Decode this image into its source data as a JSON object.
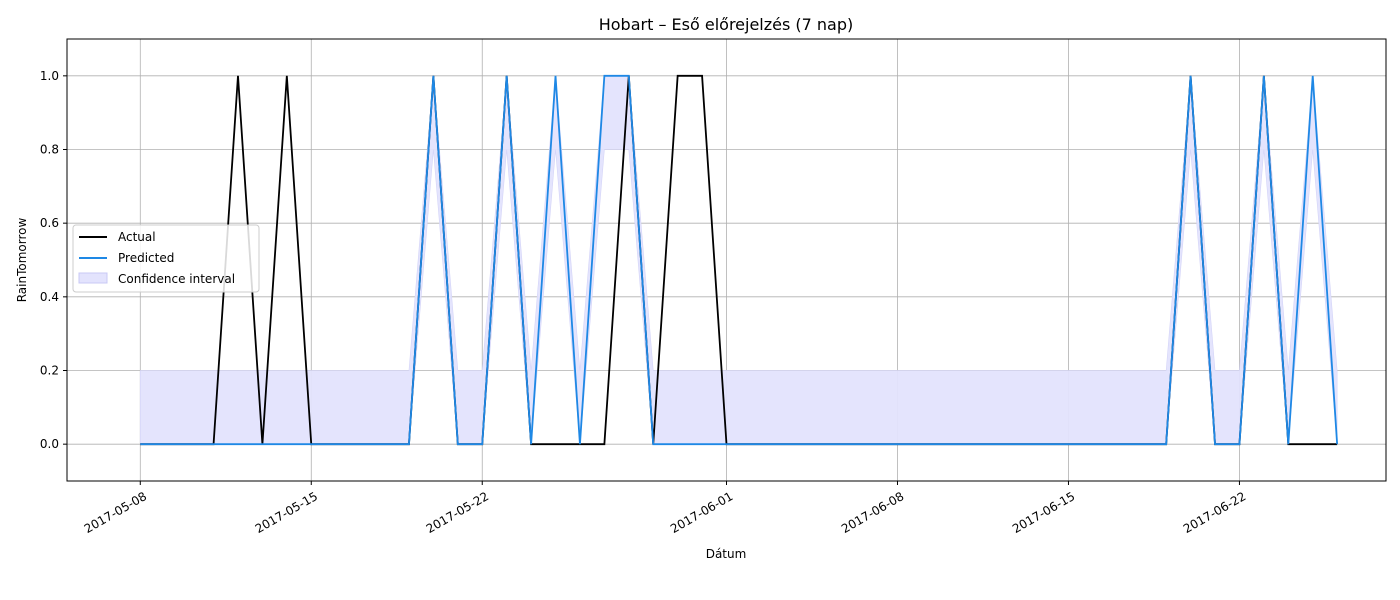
{
  "chart_data": {
    "type": "line",
    "title": "Hobart – Eső előrejelzés (7 nap)",
    "xlabel": "Dátum",
    "ylabel": "RainTomorrow",
    "x_start": "2017-05-08",
    "x": [
      "2017-05-08",
      "2017-05-09",
      "2017-05-10",
      "2017-05-11",
      "2017-05-12",
      "2017-05-13",
      "2017-05-14",
      "2017-05-15",
      "2017-05-16",
      "2017-05-17",
      "2017-05-18",
      "2017-05-19",
      "2017-05-20",
      "2017-05-21",
      "2017-05-22",
      "2017-05-23",
      "2017-05-24",
      "2017-05-25",
      "2017-05-26",
      "2017-05-27",
      "2017-05-28",
      "2017-05-29",
      "2017-05-30",
      "2017-05-31",
      "2017-06-01",
      "2017-06-02",
      "2017-06-03",
      "2017-06-04",
      "2017-06-05",
      "2017-06-06",
      "2017-06-07",
      "2017-06-08",
      "2017-06-09",
      "2017-06-10",
      "2017-06-11",
      "2017-06-12",
      "2017-06-13",
      "2017-06-14",
      "2017-06-15",
      "2017-06-16",
      "2017-06-17",
      "2017-06-18",
      "2017-06-19",
      "2017-06-20",
      "2017-06-21",
      "2017-06-22",
      "2017-06-23",
      "2017-06-24",
      "2017-06-25",
      "2017-06-26"
    ],
    "series": [
      {
        "name": "Actual",
        "color": "#000000",
        "values": [
          0,
          0,
          0,
          0,
          1,
          0,
          1,
          0,
          0,
          0,
          0,
          0,
          1,
          0,
          0,
          1,
          0,
          0,
          0,
          0,
          1,
          0,
          1,
          1,
          0,
          0,
          0,
          0,
          0,
          0,
          0,
          0,
          0,
          0,
          0,
          0,
          0,
          0,
          0,
          0,
          0,
          0,
          0,
          1,
          0,
          0,
          1,
          0,
          0,
          0
        ]
      },
      {
        "name": "Predicted",
        "color": "#1e88e5",
        "values": [
          0,
          0,
          0,
          0,
          0,
          0,
          0,
          0,
          0,
          0,
          0,
          0,
          1,
          0,
          0,
          1,
          0,
          1,
          0,
          1,
          1,
          0,
          0,
          0,
          0,
          0,
          0,
          0,
          0,
          0,
          0,
          0,
          0,
          0,
          0,
          0,
          0,
          0,
          0,
          0,
          0,
          0,
          0,
          1,
          0,
          0,
          1,
          0,
          1,
          0
        ]
      }
    ],
    "confidence_interval": {
      "name": "Confidence interval",
      "color": "#e3e3fd",
      "lower": [
        0,
        0,
        0,
        0,
        0,
        0,
        0,
        0,
        0,
        0,
        0,
        0,
        0.8,
        0,
        0,
        0.8,
        0,
        0.8,
        0,
        0.8,
        0.8,
        0,
        0,
        0,
        0,
        0,
        0,
        0,
        0,
        0,
        0,
        0,
        0,
        0,
        0,
        0,
        0,
        0,
        0,
        0,
        0,
        0,
        0,
        0.8,
        0,
        0,
        0.8,
        0,
        0.8,
        0
      ],
      "upper": [
        0.2,
        0.2,
        0.2,
        0.2,
        0.2,
        0.2,
        0.2,
        0.2,
        0.2,
        0.2,
        0.2,
        0.2,
        1,
        0.2,
        0.2,
        1,
        0.2,
        1,
        0.2,
        1,
        1,
        0.2,
        0.2,
        0.2,
        0.2,
        0.2,
        0.2,
        0.2,
        0.2,
        0.2,
        0.2,
        0.2,
        0.2,
        0.2,
        0.2,
        0.2,
        0.2,
        0.2,
        0.2,
        0.2,
        0.2,
        0.2,
        0.2,
        1,
        0.2,
        0.2,
        1,
        0.2,
        1,
        0.2
      ]
    },
    "xticks": [
      "2017-05-08",
      "2017-05-15",
      "2017-05-22",
      "2017-06-01",
      "2017-06-08",
      "2017-06-15",
      "2017-06-22"
    ],
    "yticks": [
      "0.0",
      "0.2",
      "0.4",
      "0.6",
      "0.8",
      "1.0"
    ],
    "xlim": [
      "2017-05-05",
      "2017-06-28"
    ],
    "ylim": [
      -0.1,
      1.1
    ],
    "grid": true,
    "legend_position": "center-left"
  }
}
